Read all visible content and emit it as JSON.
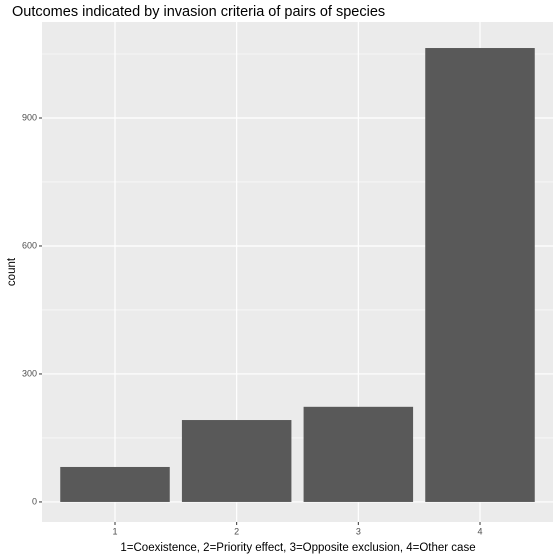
{
  "chart_data": {
    "type": "bar",
    "title": "Outcomes indicated by invasion criteria of pairs of species",
    "x_label": "1=Coexistence, 2=Priority effect, 3=Opposite exclusion, 4=Other case",
    "y_label": "count",
    "categories": [
      "1",
      "2",
      "3",
      "4"
    ],
    "values": [
      82,
      192,
      223,
      1064
    ],
    "color": "#595959",
    "ylim": [
      -47,
      1125
    ],
    "yticks": [
      0,
      300,
      600,
      900
    ],
    "minor_yticks": [
      150,
      450,
      750,
      1050
    ],
    "grid": true
  }
}
